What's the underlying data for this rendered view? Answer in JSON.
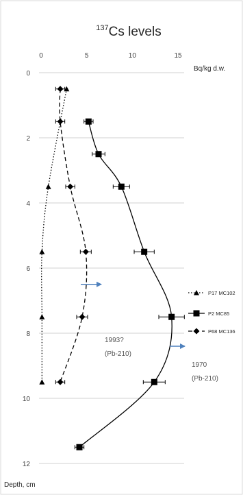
{
  "chart_data": {
    "type": "scatter",
    "title": "Cs levels",
    "title_superscript": "137",
    "xlabel": "Bq/kg d.w.",
    "ylabel": "Depth, cm",
    "x_axis_position": "top",
    "y_axis_inverted": true,
    "xlim": [
      0,
      15
    ],
    "ylim": [
      0,
      12
    ],
    "xticks": [
      "0",
      "5",
      "10",
      "15"
    ],
    "yticks": [
      "0",
      "2",
      "4",
      "6",
      "8",
      "10",
      "12"
    ],
    "grid": "horizontal",
    "legend_position": "right",
    "series": [
      {
        "name": "P17 MC102",
        "marker": "triangle",
        "line": "dotted",
        "color": "#000000",
        "points": [
          [
            2.8,
            0.5
          ],
          [
            0.8,
            3.5
          ],
          [
            0.1,
            5.5
          ],
          [
            0.1,
            7.5
          ],
          [
            0.1,
            9.5
          ]
        ]
      },
      {
        "name": "P2 MC85",
        "marker": "square",
        "line": "solid",
        "color": "#000000",
        "points": [
          [
            5.2,
            1.5
          ],
          [
            6.3,
            2.5
          ],
          [
            8.8,
            3.5
          ],
          [
            11.3,
            5.5
          ],
          [
            14.3,
            7.5
          ],
          [
            12.4,
            9.5
          ],
          [
            4.2,
            11.5
          ]
        ],
        "xerr": [
          0.5,
          0.7,
          0.9,
          1.1,
          1.4,
          1.2,
          0.5
        ]
      },
      {
        "name": "P68 MC136",
        "marker": "diamond",
        "line": "dashed",
        "color": "#000000",
        "points": [
          [
            2.1,
            0.5
          ],
          [
            2.1,
            1.5
          ],
          [
            3.2,
            3.5
          ],
          [
            4.9,
            5.5
          ],
          [
            4.5,
            7.5
          ],
          [
            2.1,
            9.5
          ]
        ],
        "xerr": [
          0.5,
          0.5,
          0.5,
          0.6,
          0.6,
          0.5
        ]
      }
    ],
    "annotations": [
      {
        "lines": [
          "1993?",
          "(Pb-210)"
        ],
        "arrow_depth": 6.5,
        "arrow_color": "#4f81bd"
      },
      {
        "lines": [
          "1970",
          "(Pb-210)"
        ],
        "arrow_depth": 8.4,
        "arrow_color": "#4f81bd"
      }
    ]
  }
}
